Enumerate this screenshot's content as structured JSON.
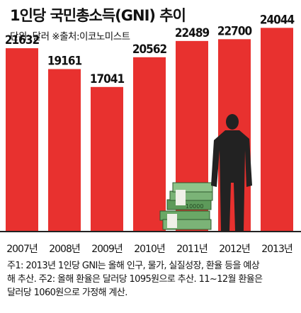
{
  "title": "1인당 국민총소득(GNI) 추이",
  "subtitle": "단위: 달러 ※출처:이코노미스트",
  "colors": {
    "bar": "#e8312f",
    "axis": "#222222",
    "figure": "#222222",
    "money": "#4a8a4a"
  },
  "chart_data": {
    "type": "bar",
    "categories": [
      "2007년",
      "2008년",
      "2009년",
      "2010년",
      "2011년",
      "2012년",
      "2013년"
    ],
    "values": [
      21632,
      19161,
      17041,
      20562,
      22489,
      22700,
      24044
    ],
    "data_labels": [
      "21632",
      "19161",
      "17041",
      "20562",
      "22489",
      "22700",
      "24044"
    ],
    "ylim": [
      0,
      26000
    ],
    "grid": false,
    "legend": "none"
  },
  "notes": [
    "주1: 2013년 1인당 GNI는 올해 인구, 물가, 실질성장, 환율 등을 예상",
    "해 추산. 주2: 올해 환율은 달러당 1095원으로 추산. 11~12월 환율은",
    "달러당 1060원으로 가정해 계산."
  ]
}
